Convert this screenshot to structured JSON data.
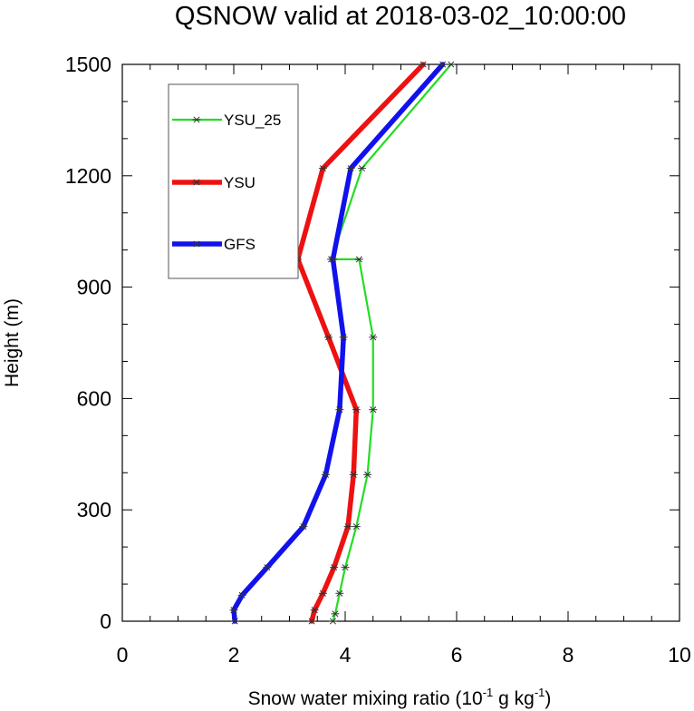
{
  "chart_data": {
    "type": "line",
    "title": "QSNOW valid at 2018-03-02_10:00:00",
    "xlabel": {
      "parts": [
        "Snow water mixing ratio (10",
        "-1",
        " g kg",
        "-1",
        ")"
      ]
    },
    "ylabel": "Height (m)",
    "xlim": [
      0,
      10
    ],
    "ylim": [
      0,
      1500
    ],
    "xticks": [
      0,
      2,
      4,
      6,
      8,
      10
    ],
    "xtick_labels": [
      "0",
      "2",
      "4",
      "6",
      "8",
      "10"
    ],
    "yticks": [
      0,
      300,
      600,
      900,
      1200,
      1500
    ],
    "ytick_labels": [
      "0",
      "300",
      "600",
      "900",
      "1200",
      "1500"
    ],
    "grid": false,
    "legend_placement": "top-left",
    "series": [
      {
        "name": "YSU_25",
        "color": "#22dd22",
        "line_weight": "thin",
        "marker": "asterisk",
        "x": [
          3.78,
          3.82,
          3.9,
          4.0,
          4.2,
          4.4,
          4.5,
          4.5,
          4.25,
          3.75,
          4.3,
          5.9
        ],
        "y": [
          0,
          20,
          75,
          145,
          255,
          395,
          570,
          765,
          975,
          975,
          1220,
          1500
        ]
      },
      {
        "name": "YSU",
        "color": "#ee1111",
        "line_weight": "thick",
        "marker": "asterisk",
        "x": [
          3.4,
          3.45,
          3.6,
          3.8,
          4.05,
          4.15,
          4.2,
          3.7,
          3.15,
          3.6,
          5.4
        ],
        "y": [
          0,
          30,
          75,
          145,
          255,
          395,
          570,
          765,
          975,
          1220,
          1500
        ]
      },
      {
        "name": "GFS",
        "color": "#1111ee",
        "line_weight": "thick",
        "marker": "asterisk",
        "x": [
          2.02,
          2.0,
          2.15,
          2.6,
          3.25,
          3.65,
          3.9,
          3.97,
          3.78,
          4.1,
          5.75
        ],
        "y": [
          0,
          30,
          70,
          145,
          255,
          395,
          570,
          765,
          975,
          1220,
          1500
        ]
      }
    ]
  }
}
